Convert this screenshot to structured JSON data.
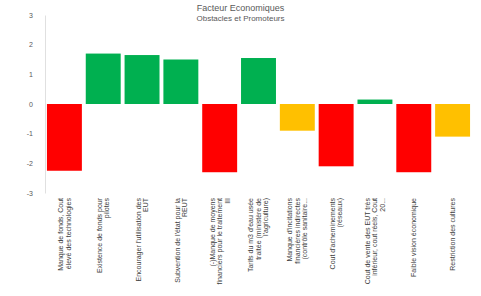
{
  "chart_data": {
    "type": "bar",
    "title": "Facteur Economiques",
    "subtitle": "Obstacles et Promoteurs",
    "categories": [
      "Manque de fonds, Cout élevé des technologies",
      "Existence de fonds pour pilotes",
      "Encourager l'utilisation des EUT",
      "Subvention de l'état pour la REUT",
      "(-)Manque de moyens financiers pour le traitement III",
      "Tarifs du m3 d'eau usée traitée (ministère de l'agriculture)",
      "Manque d'incitations financières indirectes (contrôle sanitaire...",
      "Cout d'acheminements (réseaux)",
      "Cout de vente des EUT très inférieur, cout réels, Cout 20...",
      "Faible vision économique",
      "Restriction des cultures"
    ],
    "values": [
      -2.25,
      1.7,
      1.65,
      1.5,
      -2.3,
      1.55,
      -0.9,
      -2.1,
      0.15,
      -2.3,
      -1.1
    ],
    "colors": [
      "#ff0000",
      "#00b050",
      "#00b050",
      "#00b050",
      "#ff0000",
      "#00b050",
      "#ffc000",
      "#ff0000",
      "#00b050",
      "#ff0000",
      "#ffc000"
    ],
    "ylim": [
      -3,
      3
    ],
    "yticks": [
      -3,
      -2,
      -1,
      0,
      1,
      2,
      3
    ],
    "grid": false
  }
}
